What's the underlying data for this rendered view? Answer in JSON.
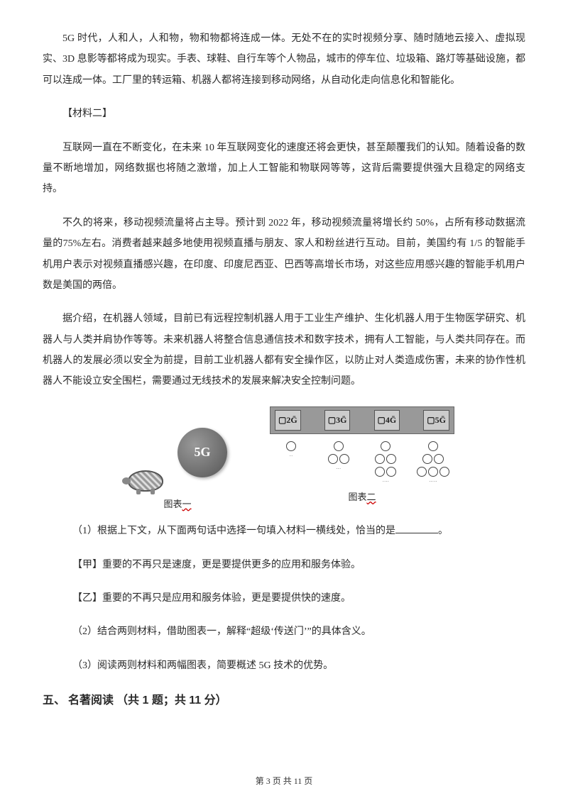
{
  "para1": "5G 时代，人和人，人和物，物和物都将连成一体。无处不在的实时视频分享、随时随地云接入、虚拟现实、3D 息影等都将成为现实。手表、球鞋、自行车等个人物品，城市的停车位、垃圾箱、路灯等基础设施，都可以连成一体。工厂里的转运箱、机器人都将连接到移动网络，从自动化走向信息化和智能化。",
  "material2_label": "【材料二】",
  "para2": "互联网一直在不断变化，在未来 10 年互联网变化的速度还将会更快，甚至颠覆我们的认知。随着设备的数量不断地增加，网络数据也将随之激增，加上人工智能和物联网等等，这背后需要提供强大且稳定的网络支持。",
  "para3": "不久的将来，移动视频流量将占主导。预计到 2022 年，移动视频流量将增长约 50%，占所有移动数据流量的75%左右。消费者越来越多地使用视频直播与朋友、家人和粉丝进行互动。目前，美国约有 1/5 的智能手机用户表示对视频直播感兴趣，在印度、印度尼西亚、巴西等高增长市场，对这些应用感兴趣的智能手机用户数是美国的两倍。",
  "para4": "据介绍，在机器人领域，目前已有远程控制机器人用于工业生产维护、生化机器人用于生物医学研究、机器人与人类并肩协作等等。未来机器人将整合信息通信技术和数字技术，拥有人工智能，与人类共同存在。而机器人的发展必须以安全为前提，目前工业机器人都有安全操作区，以防止对人类造成伤害，未来的协作性机器人不能设立安全围栏，需要通过无线技术的发展来解决安全控制问题。",
  "fig1": {
    "ball_label": "5G",
    "caption_prefix": "图表",
    "caption_num": "一"
  },
  "fig2": {
    "gens": [
      "▢2Ḡ",
      "▢3Ḡ",
      "▢4Ḡ",
      "▢5Ḡ"
    ],
    "caption_prefix": "图表",
    "caption_num": "二",
    "colors": {
      "header_bg": "#999999",
      "cell_bg": "#cccccc",
      "border": "#666666"
    }
  },
  "q1": {
    "text_before": "（1）根据上下文，从下面两句话中选择一句填入材料一横线处，恰当的是",
    "text_after": "。"
  },
  "q1_optA": "【甲】重要的不再只是速度，更是要提供更多的应用和服务体验。",
  "q1_optB": "【乙】重要的不再只是应用和服务体验，更是要提供快的速度。",
  "q2": "（2）结合两则材料，借助图表一，解释“超级‘传送门’”的具体含义。",
  "q3": "（3）阅读两则材料和两幅图表，简要概述 5G 技术的优势。",
  "heading5": {
    "label": "五、",
    "main": "名著阅读",
    "count": "（共 1 题；共 11 分）"
  },
  "footer": {
    "prefix": "第 ",
    "page": "3",
    "mid": " 页 共 ",
    "total": "11",
    "suffix": " 页"
  },
  "style": {
    "body_bg": "#ffffff",
    "text_color": "#2b2b2b",
    "font_size_body": 14,
    "font_size_heading": 16,
    "font_size_footer": 12,
    "line_height": 2.1,
    "red_underline_color": "#cc0000"
  }
}
